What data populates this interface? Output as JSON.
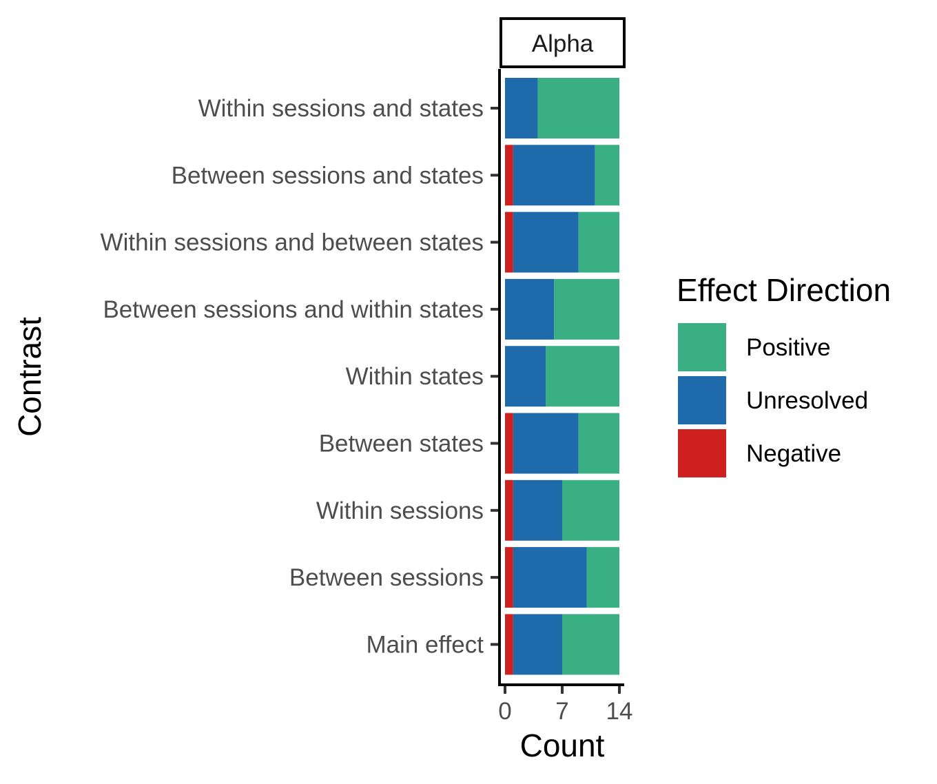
{
  "chart_data": {
    "type": "bar",
    "orientation": "horizontal",
    "stacked": true,
    "facet": "Alpha",
    "categories": [
      "Within sessions and states",
      "Between sessions and states",
      "Within sessions and between states",
      "Between sessions and within states",
      "Within states",
      "Between states",
      "Within sessions",
      "Between sessions",
      "Main effect"
    ],
    "series": [
      {
        "name": "Negative",
        "color": "#cf2020",
        "values": [
          0,
          1,
          1,
          0,
          0,
          1,
          1,
          1,
          1
        ]
      },
      {
        "name": "Unresolved",
        "color": "#1f6aab",
        "values": [
          4,
          10,
          8,
          6,
          5,
          8,
          6,
          9,
          6
        ]
      },
      {
        "name": "Positive",
        "color": "#3aaf84",
        "values": [
          10,
          3,
          5,
          8,
          9,
          5,
          7,
          4,
          7
        ]
      }
    ],
    "xlabel": "Count",
    "ylabel": "Contrast",
    "xlim": [
      0,
      14
    ],
    "xticks": [
      "0",
      "7",
      "14"
    ],
    "legend": {
      "title": "Effect Direction",
      "position": "right",
      "order": [
        "Positive",
        "Unresolved",
        "Negative"
      ]
    },
    "grid": false
  }
}
